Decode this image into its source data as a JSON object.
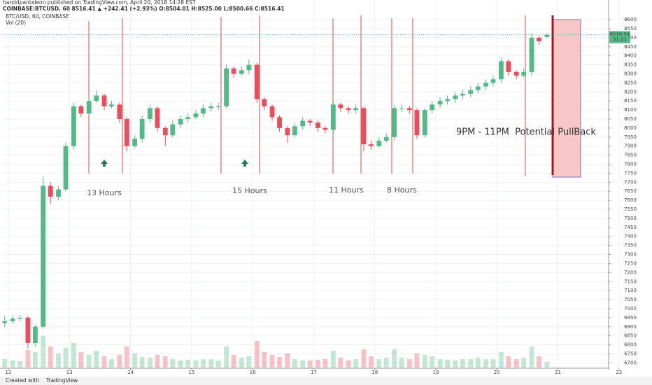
{
  "header": {
    "line1": "haroldpantaleon published on TradingView.com, April 20, 2018 14:28 EST",
    "line2": "COINBASE:BTCUSD, 60 8516.41 ▲ +242.41 (+2.93%) O:8504.01 H:8525.00 L:8500.66 C:8516.41",
    "legend": "BTC/USD, 60, COINBASE",
    "volume_label": "Vol (20)"
  },
  "annotations": [
    "13 Hours",
    "15 Hours",
    "11 Hours",
    "8 Hours",
    "9PM - 11PM  Potential PullBack"
  ],
  "footer": {
    "created": "Created with",
    "brand": "TradingView"
  },
  "chart_data": {
    "type": "candlestick",
    "up_color": "#53b987",
    "down_color": "#eb4d5c",
    "x": [
      11.94,
      12.07,
      12.19,
      12.32,
      12.44,
      12.57,
      12.69,
      12.82,
      12.94,
      13.07,
      13.19,
      13.32,
      13.44,
      13.57,
      13.69,
      13.82,
      13.94,
      14.07,
      14.19,
      14.32,
      14.44,
      14.57,
      14.69,
      14.82,
      14.94,
      15.07,
      15.19,
      15.32,
      15.44,
      15.57,
      15.69,
      15.82,
      15.94,
      16.07,
      16.19,
      16.32,
      16.44,
      16.57,
      16.69,
      16.82,
      16.94,
      17.07,
      17.19,
      17.32,
      17.44,
      17.57,
      17.69,
      17.82,
      17.94,
      18.07,
      18.19,
      18.32,
      18.44,
      18.57,
      18.69,
      18.82,
      18.94,
      19.07,
      19.19,
      19.32,
      19.44,
      19.57,
      19.69,
      19.82,
      19.94,
      20.07,
      20.19,
      20.32,
      20.44,
      20.57,
      20.69,
      20.82
    ],
    "open": [
      6920,
      6930,
      6945,
      6950,
      6810,
      6900,
      7680,
      7620,
      7660,
      7900,
      8120,
      8080,
      8150,
      8180,
      8120,
      8130,
      8050,
      7900,
      7940,
      8050,
      8110,
      8000,
      7960,
      8020,
      8050,
      8060,
      8080,
      8110,
      8120,
      8120,
      8330,
      8300,
      8320,
      8350,
      8160,
      8120,
      8060,
      8000,
      7960,
      8010,
      8040,
      8030,
      8000,
      7990,
      8130,
      8110,
      8100,
      8110,
      7910,
      7900,
      7930,
      7950,
      8110,
      8110,
      8100,
      7960,
      8100,
      8130,
      8150,
      8160,
      8180,
      8190,
      8210,
      8230,
      8250,
      8270,
      8370,
      8310,
      8290,
      8310,
      8500,
      8504.01
    ],
    "high": [
      6960,
      6960,
      6965,
      6960,
      6910,
      7730,
      7700,
      7680,
      7920,
      8140,
      8130,
      8170,
      8210,
      8190,
      8150,
      8140,
      8060,
      7960,
      8070,
      8130,
      8120,
      8010,
      8040,
      8070,
      8080,
      8100,
      8130,
      8140,
      8140,
      8350,
      8340,
      8340,
      8380,
      8360,
      8170,
      8130,
      8070,
      8010,
      8030,
      8060,
      8050,
      8040,
      8010,
      8150,
      8140,
      8120,
      8130,
      8120,
      7930,
      7950,
      7970,
      8130,
      8130,
      8120,
      8110,
      8110,
      8150,
      8170,
      8180,
      8200,
      8210,
      8230,
      8250,
      8270,
      8290,
      8390,
      8380,
      8320,
      8330,
      8525,
      8510,
      8525
    ],
    "low": [
      6900,
      6915,
      6930,
      6780,
      6790,
      6890,
      7580,
      7600,
      7650,
      7880,
      8060,
      8070,
      8140,
      8100,
      8110,
      8030,
      7870,
      7890,
      7920,
      8030,
      7980,
      7900,
      7950,
      8000,
      8030,
      8050,
      8060,
      8090,
      8100,
      8110,
      8280,
      8290,
      8300,
      8140,
      8100,
      8040,
      7980,
      7920,
      7950,
      7990,
      8010,
      7980,
      7970,
      7970,
      8090,
      8080,
      8080,
      7870,
      7880,
      7890,
      7920,
      7930,
      8090,
      8080,
      7940,
      7950,
      8080,
      8110,
      8130,
      8140,
      8160,
      8170,
      8190,
      8210,
      8230,
      8250,
      8290,
      8270,
      8280,
      8290,
      8460,
      8500.66
    ],
    "close": [
      6930,
      6945,
      6950,
      6810,
      6900,
      7680,
      7620,
      7660,
      7900,
      8120,
      8080,
      8150,
      8180,
      8120,
      8130,
      8050,
      7900,
      7940,
      8050,
      8110,
      8000,
      7960,
      8020,
      8050,
      8060,
      8080,
      8110,
      8120,
      8120,
      8330,
      8300,
      8320,
      8350,
      8160,
      8120,
      8060,
      8000,
      7960,
      8010,
      8040,
      8030,
      8000,
      7990,
      8130,
      8110,
      8100,
      8110,
      7910,
      7900,
      7930,
      7950,
      8110,
      8110,
      8100,
      7960,
      8100,
      8130,
      8150,
      8160,
      8180,
      8190,
      8210,
      8230,
      8250,
      8270,
      8370,
      8310,
      8290,
      8310,
      8500,
      8480,
      8516.41
    ],
    "volume": [
      12,
      10,
      9,
      25,
      22,
      45,
      30,
      20,
      28,
      35,
      22,
      18,
      24,
      16,
      12,
      18,
      30,
      20,
      15,
      14,
      18,
      16,
      12,
      10,
      11,
      10,
      12,
      12,
      10,
      30,
      18,
      14,
      16,
      38,
      22,
      18,
      15,
      20,
      12,
      10,
      10,
      11,
      12,
      24,
      14,
      10,
      12,
      26,
      16,
      12,
      14,
      26,
      14,
      12,
      20,
      18,
      16,
      12,
      11,
      10,
      12,
      12,
      14,
      12,
      12,
      22,
      16,
      12,
      14,
      30,
      16,
      8
    ],
    "vlim": [
      0,
      60
    ],
    "last_price_label": "8516.41",
    "countdown": "31:21",
    "last_price": 8516.41,
    "xlim": [
      11.92,
      21.83
    ],
    "ylim": [
      6655,
      8670
    ],
    "xticks": [
      12,
      13,
      14,
      15,
      16,
      17,
      18,
      19,
      20,
      21,
      22
    ],
    "yticks": [
      6700,
      6750,
      6800,
      6850,
      6900,
      6950,
      7000,
      7050,
      7100,
      7150,
      7200,
      7250,
      7300,
      7350,
      7400,
      7450,
      7500,
      7550,
      7600,
      7650,
      7700,
      7750,
      7800,
      7850,
      7900,
      7950,
      8000,
      8050,
      8100,
      8150,
      8200,
      8250,
      8300,
      8350,
      8400,
      8450,
      8500,
      8550,
      8600
    ],
    "grid": true
  }
}
